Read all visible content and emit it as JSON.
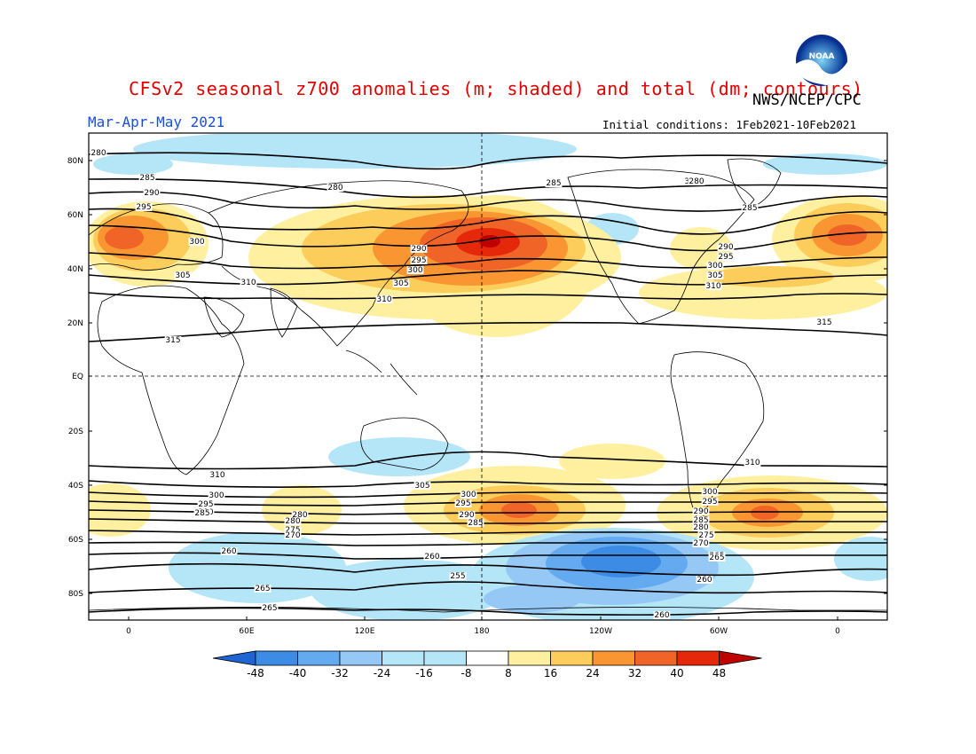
{
  "header": {
    "title": "CFSv2 seasonal z700 anomalies (m; shaded) and total (dm; contours)",
    "agency": "NWS/NCEP/CPC",
    "season": "Mar-Apr-May 2021",
    "initial_conditions": "Initial conditions: 1Feb2021-10Feb2021",
    "logo_text": "NOAA"
  },
  "map": {
    "lat_labels": [
      "80N",
      "60N",
      "40N",
      "20N",
      "EQ",
      "20S",
      "40S",
      "60S",
      "80S"
    ],
    "lon_labels": [
      "0",
      "60E",
      "120E",
      "180",
      "120W",
      "60W",
      "0"
    ],
    "contour_labels": [
      "280",
      "285",
      "290",
      "295",
      "300",
      "305",
      "310",
      "310",
      "315",
      "280",
      "285",
      "290",
      "295",
      "300",
      "305",
      "310",
      "285",
      "280",
      "290",
      "295",
      "300",
      "305",
      "310",
      "315",
      "310",
      "310",
      "305",
      "300",
      "295",
      "290",
      "285",
      "280",
      "300",
      "295",
      "290",
      "285",
      "280",
      "275",
      "270",
      "265",
      "260",
      "255",
      "260",
      "265",
      "260",
      "265",
      "260",
      "300",
      "295",
      "290",
      "285",
      "280",
      "275",
      "270",
      "265"
    ],
    "colors": {
      "neg48": "#1e64d2",
      "neg40": "#3c8ce6",
      "neg32": "#64aaf0",
      "neg24": "#96c8f5",
      "neg16": "#b4e6f8",
      "neg8": "#ffffff",
      "pos8": "#fff0a0",
      "pos16": "#fccd5a",
      "pos24": "#fa9632",
      "pos32": "#f06428",
      "pos40": "#e6280a",
      "pos48": "#be0000"
    }
  },
  "colorbar": {
    "labels": [
      "-48",
      "-40",
      "-32",
      "-24",
      "-16",
      "-8",
      "8",
      "16",
      "24",
      "32",
      "40",
      "48"
    ]
  }
}
